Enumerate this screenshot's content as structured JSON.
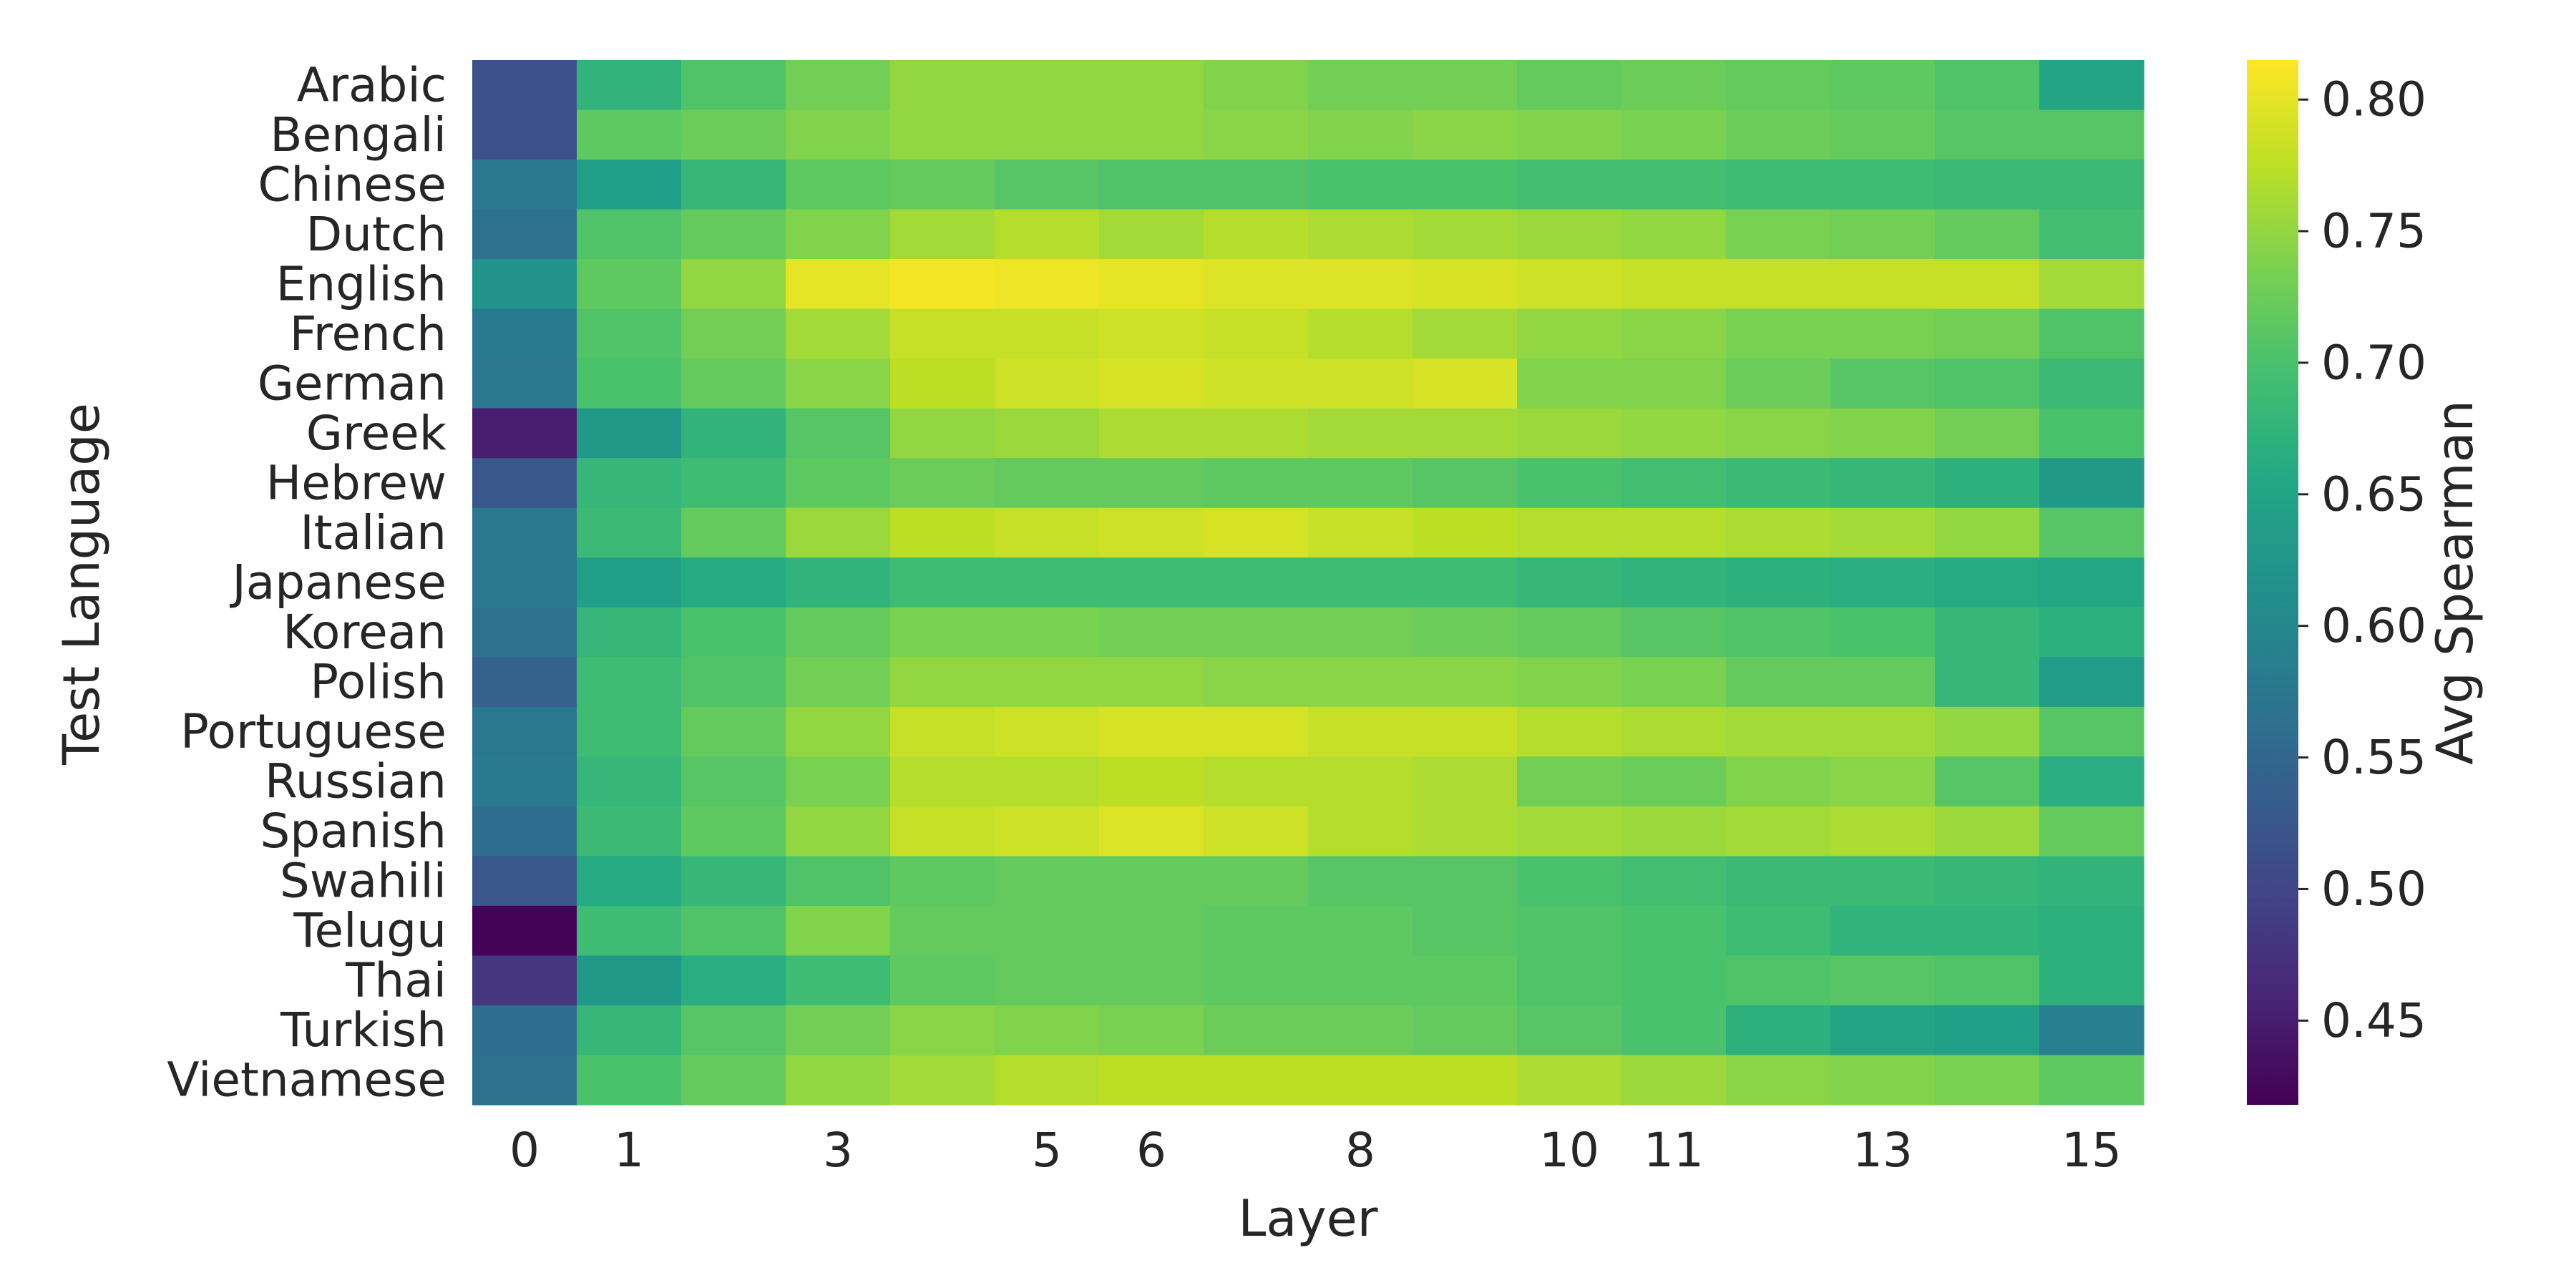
{
  "chart_data": {
    "type": "heatmap",
    "title": "",
    "xlabel": "Layer",
    "ylabel": "Test Language",
    "colorbar_label": "Avg Spearman",
    "colormap": "viridis",
    "vmin": 0.418,
    "vmax": 0.815,
    "x": [
      0,
      1,
      2,
      3,
      4,
      5,
      6,
      7,
      8,
      9,
      10,
      11,
      12,
      13,
      14,
      15
    ],
    "x_tick_labels_shown": [
      "0",
      "1",
      "3",
      "5",
      "6",
      "8",
      "10",
      "11",
      "13",
      "15"
    ],
    "x_tick_indices_shown": [
      0,
      1,
      3,
      5,
      6,
      8,
      10,
      11,
      13,
      15
    ],
    "y": [
      "Arabic",
      "Bengali",
      "Chinese",
      "Dutch",
      "English",
      "French",
      "German",
      "Greek",
      "Hebrew",
      "Italian",
      "Japanese",
      "Korean",
      "Polish",
      "Portuguese",
      "Russian",
      "Spanish",
      "Swahili",
      "Telugu",
      "Thai",
      "Turkish",
      "Vietnamese"
    ],
    "colorbar_ticks": [
      "0.45",
      "0.50",
      "0.55",
      "0.60",
      "0.65",
      "0.70",
      "0.75",
      "0.80"
    ],
    "values": [
      [
        0.515,
        0.675,
        0.705,
        0.73,
        0.75,
        0.75,
        0.75,
        0.74,
        0.73,
        0.73,
        0.72,
        0.725,
        0.72,
        0.715,
        0.705,
        0.65
      ],
      [
        0.515,
        0.715,
        0.725,
        0.74,
        0.75,
        0.75,
        0.75,
        0.745,
        0.74,
        0.745,
        0.74,
        0.735,
        0.725,
        0.72,
        0.71,
        0.71
      ],
      [
        0.575,
        0.64,
        0.68,
        0.715,
        0.72,
        0.71,
        0.705,
        0.705,
        0.7,
        0.7,
        0.695,
        0.695,
        0.69,
        0.69,
        0.685,
        0.685
      ],
      [
        0.565,
        0.705,
        0.72,
        0.74,
        0.76,
        0.77,
        0.76,
        0.77,
        0.765,
        0.76,
        0.755,
        0.75,
        0.735,
        0.73,
        0.72,
        0.695
      ],
      [
        0.62,
        0.715,
        0.75,
        0.8,
        0.81,
        0.805,
        0.8,
        0.795,
        0.795,
        0.79,
        0.785,
        0.78,
        0.78,
        0.78,
        0.78,
        0.76
      ],
      [
        0.58,
        0.705,
        0.73,
        0.76,
        0.78,
        0.78,
        0.785,
        0.78,
        0.77,
        0.76,
        0.75,
        0.745,
        0.735,
        0.735,
        0.73,
        0.705
      ],
      [
        0.575,
        0.7,
        0.72,
        0.745,
        0.775,
        0.785,
        0.79,
        0.785,
        0.785,
        0.79,
        0.74,
        0.74,
        0.725,
        0.71,
        0.705,
        0.685
      ],
      [
        0.45,
        0.63,
        0.675,
        0.71,
        0.75,
        0.755,
        0.765,
        0.765,
        0.76,
        0.76,
        0.755,
        0.75,
        0.745,
        0.74,
        0.73,
        0.7
      ],
      [
        0.525,
        0.68,
        0.69,
        0.715,
        0.725,
        0.72,
        0.72,
        0.715,
        0.715,
        0.71,
        0.7,
        0.695,
        0.685,
        0.68,
        0.67,
        0.63
      ],
      [
        0.575,
        0.685,
        0.72,
        0.755,
        0.775,
        0.78,
        0.785,
        0.79,
        0.78,
        0.775,
        0.77,
        0.77,
        0.765,
        0.76,
        0.75,
        0.71
      ],
      [
        0.575,
        0.64,
        0.66,
        0.675,
        0.69,
        0.69,
        0.69,
        0.69,
        0.69,
        0.69,
        0.68,
        0.675,
        0.67,
        0.665,
        0.66,
        0.655
      ],
      [
        0.565,
        0.68,
        0.7,
        0.72,
        0.735,
        0.735,
        0.73,
        0.73,
        0.73,
        0.725,
        0.72,
        0.71,
        0.705,
        0.7,
        0.68,
        0.67
      ],
      [
        0.54,
        0.69,
        0.705,
        0.73,
        0.75,
        0.75,
        0.75,
        0.745,
        0.745,
        0.745,
        0.74,
        0.735,
        0.72,
        0.72,
        0.68,
        0.635
      ],
      [
        0.575,
        0.69,
        0.72,
        0.75,
        0.78,
        0.785,
        0.79,
        0.79,
        0.78,
        0.78,
        0.77,
        0.765,
        0.76,
        0.76,
        0.75,
        0.71
      ],
      [
        0.58,
        0.68,
        0.71,
        0.735,
        0.77,
        0.77,
        0.775,
        0.77,
        0.77,
        0.765,
        0.73,
        0.725,
        0.74,
        0.745,
        0.71,
        0.665
      ],
      [
        0.56,
        0.685,
        0.715,
        0.75,
        0.78,
        0.785,
        0.795,
        0.785,
        0.77,
        0.765,
        0.76,
        0.755,
        0.76,
        0.765,
        0.755,
        0.72
      ],
      [
        0.525,
        0.66,
        0.68,
        0.705,
        0.715,
        0.72,
        0.72,
        0.72,
        0.71,
        0.71,
        0.7,
        0.695,
        0.685,
        0.685,
        0.68,
        0.675
      ],
      [
        0.42,
        0.69,
        0.705,
        0.74,
        0.72,
        0.72,
        0.72,
        0.715,
        0.715,
        0.71,
        0.705,
        0.7,
        0.69,
        0.675,
        0.675,
        0.67
      ],
      [
        0.48,
        0.63,
        0.665,
        0.69,
        0.715,
        0.72,
        0.72,
        0.715,
        0.715,
        0.715,
        0.705,
        0.7,
        0.705,
        0.71,
        0.705,
        0.67
      ],
      [
        0.56,
        0.68,
        0.71,
        0.73,
        0.745,
        0.74,
        0.735,
        0.725,
        0.725,
        0.72,
        0.71,
        0.7,
        0.67,
        0.65,
        0.64,
        0.59
      ],
      [
        0.565,
        0.7,
        0.72,
        0.75,
        0.76,
        0.77,
        0.775,
        0.775,
        0.775,
        0.775,
        0.765,
        0.755,
        0.745,
        0.74,
        0.735,
        0.715
      ]
    ]
  }
}
